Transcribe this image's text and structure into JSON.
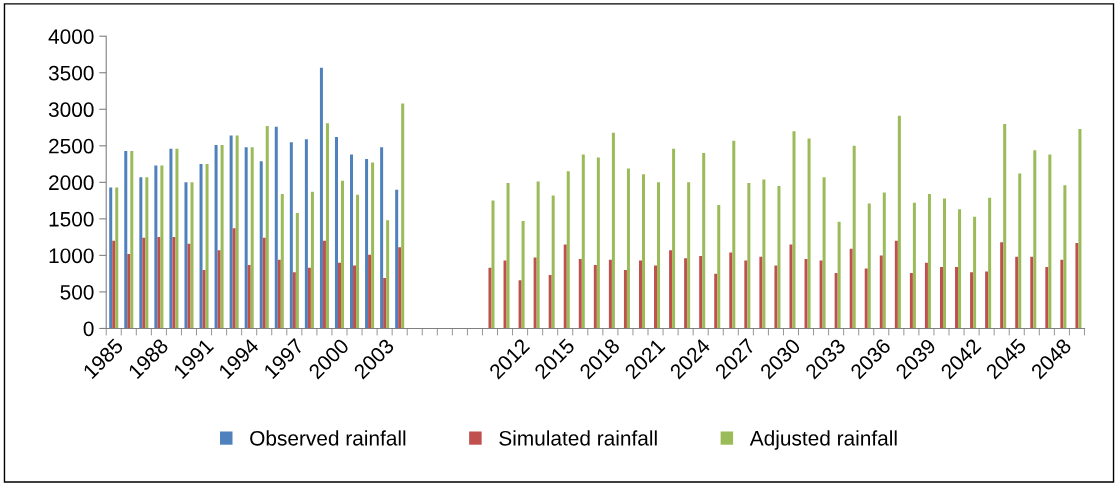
{
  "chart_data": {
    "type": "bar",
    "categories": [
      "1985",
      null,
      null,
      "1988",
      null,
      null,
      "1991",
      null,
      null,
      "1994",
      null,
      null,
      "1997",
      null,
      null,
      "2000",
      null,
      null,
      "2003",
      null,
      null,
      null,
      null,
      null,
      null,
      null,
      null,
      "2012",
      null,
      null,
      "2015",
      null,
      null,
      "2018",
      null,
      null,
      "2021",
      null,
      null,
      "2024",
      null,
      null,
      "2027",
      null,
      null,
      "2030",
      null,
      null,
      "2033",
      null,
      null,
      "2036",
      null,
      null,
      "2039",
      null,
      null,
      "2042",
      null,
      null,
      "2045",
      null,
      null,
      "2048",
      null
    ],
    "series": [
      {
        "name": "Observed rainfall",
        "color": "#4f81bd",
        "values": [
          1930,
          2430,
          2070,
          2230,
          2460,
          2000,
          2250,
          2510,
          2640,
          2480,
          2290,
          2760,
          2550,
          2590,
          3570,
          2620,
          2380,
          2320,
          2480,
          1900,
          null,
          null,
          null,
          null,
          null,
          null,
          null,
          null,
          null,
          null,
          null,
          null,
          null,
          null,
          null,
          null,
          null,
          null,
          null,
          null,
          null,
          null,
          null,
          null,
          null,
          null,
          null,
          null,
          null,
          null,
          null,
          null,
          null,
          null,
          null,
          null,
          null,
          null,
          null,
          null,
          null,
          null,
          null,
          null,
          null
        ]
      },
      {
        "name": "Simulated rainfall",
        "color": "#c0504d",
        "values": [
          1200,
          1020,
          1240,
          1250,
          1250,
          1160,
          800,
          1070,
          1370,
          870,
          1240,
          940,
          770,
          830,
          1200,
          900,
          860,
          1010,
          690,
          1110,
          null,
          null,
          null,
          null,
          null,
          830,
          930,
          660,
          970,
          730,
          1150,
          950,
          870,
          940,
          800,
          930,
          860,
          1070,
          960,
          990,
          750,
          1040,
          930,
          980,
          860,
          1150,
          950,
          930,
          760,
          1090,
          820,
          1000,
          1200,
          760,
          900,
          840,
          840,
          770,
          780,
          1180,
          980,
          980,
          840,
          940,
          1170
        ]
      },
      {
        "name": "Adjusted rainfall",
        "color": "#9bbb59",
        "values": [
          1930,
          2430,
          2070,
          2230,
          2460,
          2000,
          2250,
          2510,
          2640,
          2480,
          2770,
          1840,
          1580,
          1870,
          2810,
          2020,
          1830,
          2270,
          1480,
          3080,
          null,
          null,
          null,
          null,
          null,
          1750,
          1990,
          1470,
          2010,
          1820,
          2150,
          2380,
          2340,
          2680,
          2190,
          2110,
          2000,
          2460,
          2000,
          2400,
          1690,
          2570,
          1990,
          2040,
          1950,
          2700,
          2600,
          2070,
          1460,
          2500,
          1710,
          1860,
          2910,
          1720,
          1840,
          1780,
          1630,
          1530,
          1790,
          2800,
          2120,
          2440,
          2380,
          1960,
          2730
        ]
      }
    ],
    "ylim": [
      0,
      4000
    ],
    "yticks": [
      0,
      500,
      1000,
      1500,
      2000,
      2500,
      3000,
      3500,
      4000
    ],
    "grid": false,
    "legend": "bottom"
  }
}
